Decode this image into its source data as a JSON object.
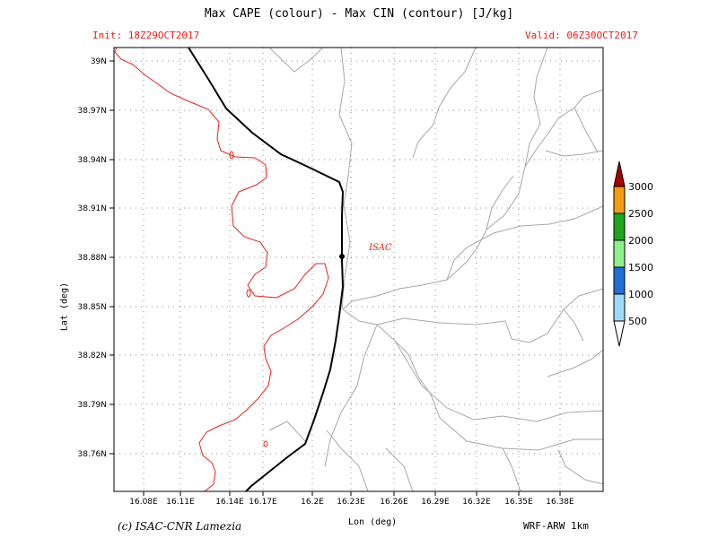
{
  "title": "Max CAPE (colour) - Max CIN (contour) [J/kg]",
  "init": "Init: 18Z29OCT2017",
  "valid": "Valid: 06Z30OCT2017",
  "credit": "(c) ISAC-CNR Lamezia",
  "model": "WRF-ARW 1km",
  "axes": {
    "x_label": "Lon (deg)",
    "y_label": "Lat (deg)",
    "x_ticks": [
      "16.08E",
      "16.11E",
      "16.14E",
      "16.17E",
      "16.2E",
      "16.23E",
      "16.26E",
      "16.29E",
      "16.32E",
      "16.35E",
      "16.38E"
    ],
    "y_ticks": [
      "39N",
      "38.97N",
      "38.94N",
      "38.91N",
      "38.88N",
      "38.85N",
      "38.82N",
      "38.79N",
      "38.76N"
    ],
    "grid": "dotted"
  },
  "site": {
    "name": "ISAC",
    "lon": 16.23,
    "lat": 38.88
  },
  "colorbar": {
    "labels": [
      "500",
      "1000",
      "1500",
      "2000",
      "2500",
      "3000"
    ],
    "colors": [
      "#ffffff",
      "#a0d8f8",
      "#1f6fd6",
      "#8ef08a",
      "#1ea51e",
      "#f59a12",
      "#a80000"
    ]
  },
  "colors": {
    "cin_contour": "#e8201c",
    "border": "#000000",
    "terrain_lines": "#a8a8a8",
    "grid": "#8c8c8c"
  }
}
